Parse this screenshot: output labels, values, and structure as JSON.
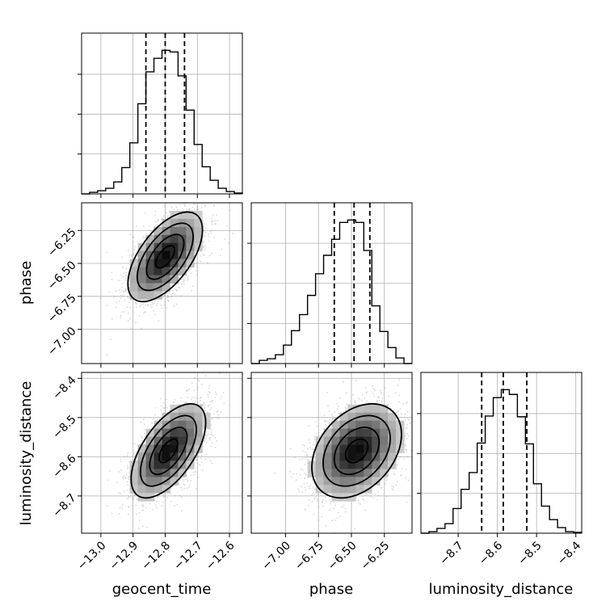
{
  "chart_data": {
    "type": "corner",
    "parameters": [
      "geocent_time",
      "phase",
      "luminosity_distance"
    ],
    "ranges": {
      "geocent_time": [
        -13.06,
        -12.56
      ],
      "phase": [
        -7.26,
        -6.04
      ],
      "luminosity_distance": [
        -8.795,
        -8.385
      ]
    },
    "ticks": {
      "geocent_time": [
        -13.0,
        -12.9,
        -12.8,
        -12.7,
        -12.6
      ],
      "phase": [
        -7.0,
        -6.75,
        -6.5,
        -6.25
      ],
      "luminosity_distance": [
        -8.7,
        -8.6,
        -8.5,
        -8.4
      ]
    },
    "tick_labels": {
      "geocent_time": [
        "−13.0",
        "−12.9",
        "−12.8",
        "−12.7",
        "−12.6"
      ],
      "phase": [
        "−7.00",
        "−6.75",
        "−6.50",
        "−6.25"
      ],
      "luminosity_distance": [
        "−8.7",
        "−8.6",
        "−8.5",
        "−8.4"
      ]
    },
    "quantiles": {
      "geocent_time": [
        -12.86,
        -12.8,
        -12.74
      ],
      "phase": [
        -6.63,
        -6.48,
        -6.36
      ],
      "luminosity_distance": [
        -8.64,
        -8.585,
        -8.525
      ]
    },
    "histograms": {
      "geocent_time": {
        "bins": [
          -13.06,
          -13.035,
          -13.01,
          -12.985,
          -12.96,
          -12.935,
          -12.91,
          -12.885,
          -12.86,
          -12.835,
          -12.81,
          -12.785,
          -12.76,
          -12.735,
          -12.71,
          -12.685,
          -12.66,
          -12.635,
          -12.61,
          -12.585,
          -12.56
        ],
        "counts": [
          0,
          2,
          4,
          7,
          15,
          33,
          64,
          113,
          153,
          170,
          180,
          178,
          148,
          105,
          62,
          34,
          17,
          7,
          3,
          1
        ]
      },
      "phase": {
        "bins": [
          -7.26,
          -7.199,
          -7.138,
          -7.077,
          -7.016,
          -6.955,
          -6.894,
          -6.833,
          -6.772,
          -6.711,
          -6.65,
          -6.589,
          -6.528,
          -6.467,
          -6.406,
          -6.345,
          -6.284,
          -6.223,
          -6.162,
          -6.101,
          -6.04
        ],
        "counts": [
          0,
          4,
          6,
          11,
          23,
          41,
          61,
          85,
          112,
          135,
          155,
          176,
          179,
          176,
          141,
          72,
          40,
          20,
          7,
          0
        ]
      },
      "luminosity_distance": {
        "bins": [
          -8.795,
          -8.7745,
          -8.754,
          -8.7335,
          -8.713,
          -8.6925,
          -8.672,
          -8.6515,
          -8.631,
          -8.6105,
          -8.59,
          -8.5695,
          -8.549,
          -8.5285,
          -8.508,
          -8.4875,
          -8.467,
          -8.4465,
          -8.426,
          -8.4055,
          -8.385
        ],
        "counts": [
          0,
          2,
          6,
          12,
          31,
          55,
          76,
          113,
          147,
          170,
          180,
          174,
          146,
          112,
          62,
          34,
          17,
          7,
          2,
          1
        ]
      }
    },
    "pairs": [
      {
        "x": "geocent_time",
        "y": "phase",
        "mean": [
          -12.8,
          -6.45
        ],
        "sd": [
          0.058,
          0.17
        ],
        "rho": 0.6
      },
      {
        "x": "geocent_time",
        "y": "luminosity_distance",
        "mean": [
          -12.79,
          -8.585
        ],
        "sd": [
          0.058,
          0.06
        ],
        "rho": 0.6
      },
      {
        "x": "phase",
        "y": "luminosity_distance",
        "mean": [
          -6.46,
          -8.585
        ],
        "sd": [
          0.17,
          0.06
        ],
        "rho": 0.35
      }
    ],
    "contour_levels": [
      0.5,
      1.0,
      1.5,
      2.0
    ],
    "grid": true
  }
}
